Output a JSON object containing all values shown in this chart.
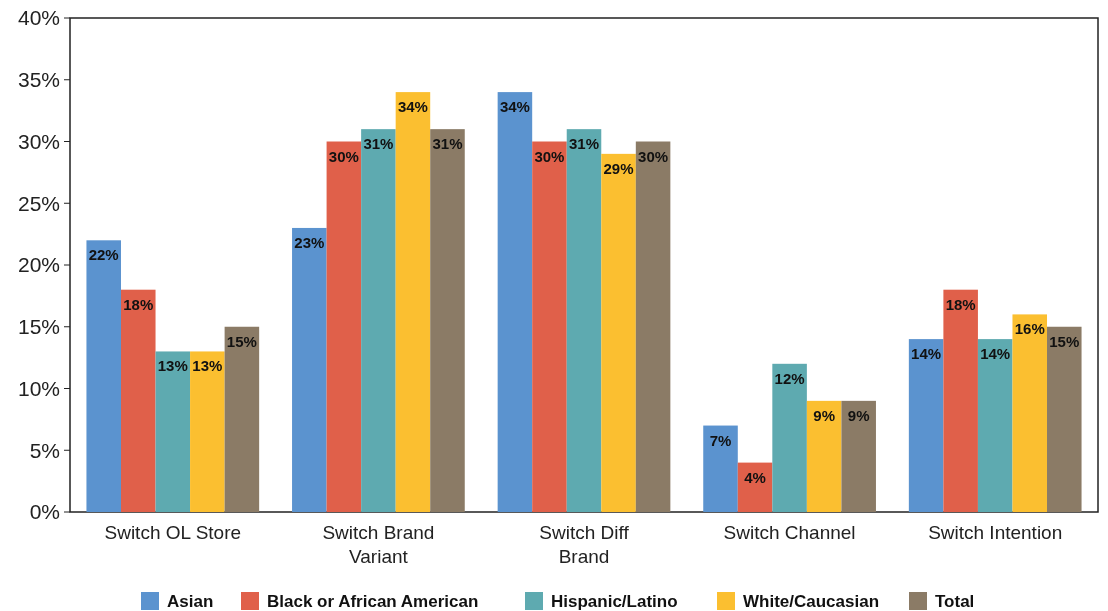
{
  "chart_data": {
    "type": "bar",
    "categories": [
      "Switch OL Store",
      "Switch Brand Variant",
      "Switch Diff Brand",
      "Switch Channel",
      "Switch Intention"
    ],
    "series": [
      {
        "name": "Asian",
        "color": "#5b93cf",
        "values": [
          22,
          23,
          34,
          7,
          14
        ],
        "value_labels": [
          "22%",
          "23%",
          "34%",
          "7%",
          "14%"
        ]
      },
      {
        "name": "Black or African American",
        "color": "#e0604a",
        "values": [
          18,
          30,
          30,
          4,
          18
        ],
        "value_labels": [
          "18%",
          "30%",
          "30%",
          "4%",
          "18%"
        ]
      },
      {
        "name": "Hispanic/Latino",
        "color": "#5eaab0",
        "values": [
          13,
          31,
          31,
          12,
          14
        ],
        "value_labels": [
          "13%",
          "31%",
          "31%",
          "12%",
          "14%"
        ]
      },
      {
        "name": "White/Caucasian",
        "color": "#fbbf30",
        "values": [
          13,
          34,
          29,
          9,
          16
        ],
        "value_labels": [
          "13%",
          "34%",
          "29%",
          "9%",
          "16%"
        ]
      },
      {
        "name": "Total",
        "color": "#8b7b66",
        "values": [
          15,
          31,
          30,
          9,
          15
        ],
        "value_labels": [
          "15%",
          "31%",
          "30%",
          "9%",
          "15%"
        ]
      }
    ],
    "ylim": [
      0,
      40
    ],
    "yticks": [
      {
        "value": 0,
        "label": "0%"
      },
      {
        "value": 5,
        "label": "5%"
      },
      {
        "value": 10,
        "label": "10%"
      },
      {
        "value": 15,
        "label": "15%"
      },
      {
        "value": 20,
        "label": "20%"
      },
      {
        "value": 25,
        "label": "25%"
      },
      {
        "value": 30,
        "label": "30%"
      },
      {
        "value": 35,
        "label": "35%"
      },
      {
        "value": 40,
        "label": "40%"
      }
    ],
    "grid": false,
    "legend": "bottom"
  }
}
